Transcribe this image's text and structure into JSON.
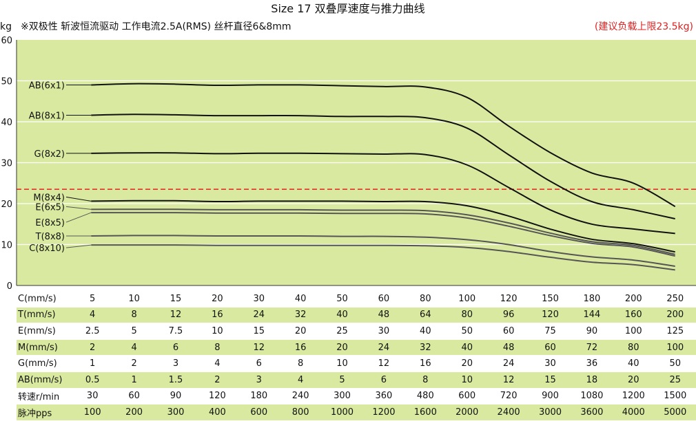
{
  "chart_data": {
    "type": "line",
    "title": "Size 17 双叠厚速度与推力曲线",
    "subtitle": "※双极性 斩波恒流驱动 工作电流2.5A(RMS)  丝杆直径6&8mm",
    "ylabel": "kg",
    "note": "(建议负载上限23.5kg)",
    "ylim": [
      0,
      60
    ],
    "yticks": [
      0,
      10,
      20,
      30,
      40,
      50,
      60
    ],
    "grid": true,
    "background_color": "#d9eaa0",
    "limit_line": {
      "value": 23.5,
      "color": "#e02020"
    },
    "line_colors": {
      "dark": "#111111",
      "gray": "#555555"
    },
    "speed_points": [
      5,
      10,
      15,
      20,
      30,
      40,
      50,
      60,
      80,
      100,
      120,
      150,
      180,
      200,
      250
    ],
    "series": [
      {
        "name": "AB(6x1)",
        "tone": "dark",
        "values": [
          49,
          49.3,
          49.2,
          48.9,
          49,
          49,
          48.8,
          48.6,
          48.5,
          46,
          39,
          32.5,
          27.5,
          25,
          19.3
        ]
      },
      {
        "name": "AB(8x1)",
        "tone": "dark",
        "values": [
          41.6,
          41.8,
          41.7,
          41.5,
          41.5,
          41.5,
          41.3,
          41.3,
          41,
          38.5,
          32,
          25.5,
          20.5,
          18.5,
          16.3
        ]
      },
      {
        "name": "G(8x2)",
        "tone": "dark",
        "values": [
          32.3,
          32.4,
          32.4,
          32.2,
          32.3,
          32.3,
          32.2,
          32.1,
          32,
          29.5,
          24,
          18.5,
          15,
          13.8,
          12.7
        ]
      },
      {
        "name": "M(8x4)",
        "tone": "dark",
        "values": [
          20.6,
          20.7,
          20.7,
          20.5,
          20.6,
          20.6,
          20.6,
          20.5,
          20.5,
          19.5,
          17,
          13.8,
          11.3,
          10.2,
          8.2
        ]
      },
      {
        "name": "E(6x5)",
        "tone": "gray",
        "values": [
          18.6,
          18.6,
          18.6,
          18.5,
          18.5,
          18.5,
          18.4,
          18.4,
          18.3,
          17.3,
          15.3,
          12.8,
          10.7,
          9.8,
          7.6
        ]
      },
      {
        "name": "E(8x5)",
        "tone": "gray",
        "values": [
          17.8,
          17.8,
          17.8,
          17.7,
          17.7,
          17.7,
          17.6,
          17.6,
          17.5,
          16.5,
          14.5,
          12.2,
          10.3,
          9.4,
          7.2
        ]
      },
      {
        "name": "T(8x8)",
        "tone": "gray",
        "values": [
          12.1,
          12.2,
          12.2,
          12.1,
          12.1,
          12.1,
          12.0,
          12.0,
          11.8,
          11.2,
          10,
          8.3,
          7,
          6.2,
          4.7
        ]
      },
      {
        "name": "C(8x10)",
        "tone": "gray",
        "values": [
          9.9,
          9.9,
          9.9,
          9.8,
          9.8,
          9.8,
          9.8,
          9.8,
          9.7,
          9.3,
          8.3,
          6.9,
          5.7,
          5.1,
          3.8
        ]
      }
    ]
  },
  "table": {
    "rows": [
      {
        "label": "C(mm/s)",
        "cells": [
          "5",
          "10",
          "15",
          "20",
          "30",
          "40",
          "50",
          "60",
          "80",
          "100",
          "120",
          "150",
          "180",
          "200",
          "250"
        ],
        "shaded": false
      },
      {
        "label": "T(mm/s)",
        "cells": [
          "4",
          "8",
          "12",
          "16",
          "24",
          "32",
          "40",
          "48",
          "64",
          "80",
          "96",
          "120",
          "144",
          "160",
          "200"
        ],
        "shaded": true
      },
      {
        "label": "E(mm/s)",
        "cells": [
          "2.5",
          "5",
          "7.5",
          "10",
          "15",
          "20",
          "25",
          "30",
          "40",
          "50",
          "60",
          "75",
          "90",
          "100",
          "125"
        ],
        "shaded": false
      },
      {
        "label": "M(mm/s)",
        "cells": [
          "2",
          "4",
          "6",
          "8",
          "12",
          "16",
          "20",
          "24",
          "32",
          "40",
          "48",
          "60",
          "72",
          "80",
          "100"
        ],
        "shaded": true
      },
      {
        "label": "G(mm/s)",
        "cells": [
          "1",
          "2",
          "3",
          "4",
          "6",
          "8",
          "10",
          "12",
          "16",
          "20",
          "24",
          "30",
          "36",
          "40",
          "50"
        ],
        "shaded": false
      },
      {
        "label": "AB(mm/s)",
        "cells": [
          "0.5",
          "1",
          "1.5",
          "2",
          "3",
          "4",
          "5",
          "6",
          "8",
          "10",
          "12",
          "15",
          "18",
          "20",
          "25"
        ],
        "shaded": true
      },
      {
        "label": "转速r/min",
        "cells": [
          "30",
          "60",
          "90",
          "120",
          "180",
          "240",
          "300",
          "360",
          "480",
          "600",
          "720",
          "900",
          "1080",
          "1200",
          "1500"
        ],
        "shaded": false
      },
      {
        "label": "脉冲pps",
        "cells": [
          "100",
          "200",
          "300",
          "400",
          "600",
          "800",
          "1000",
          "1200",
          "1600",
          "2000",
          "2400",
          "3000",
          "3600",
          "4000",
          "5000"
        ],
        "shaded": true
      }
    ]
  }
}
